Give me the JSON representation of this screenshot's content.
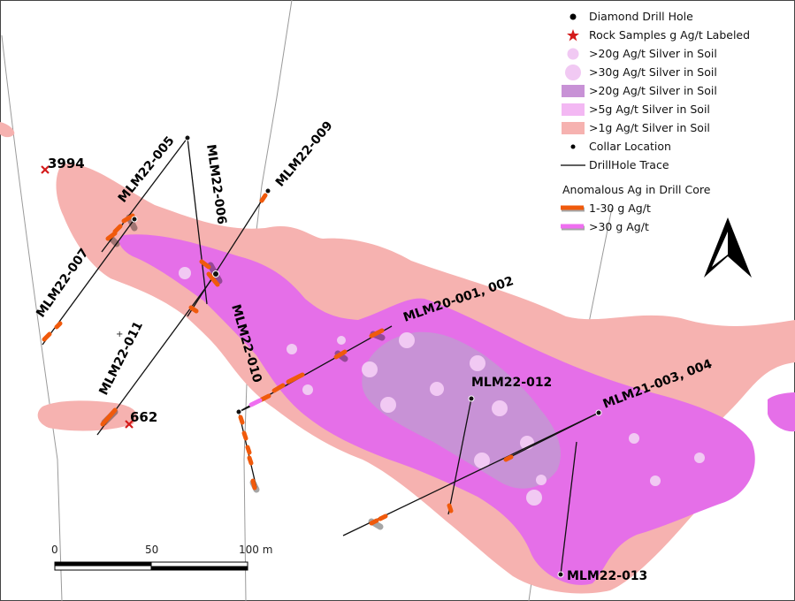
{
  "legend": {
    "items": [
      {
        "label": "Diamond Drill Hole",
        "icon": "black-dot-icon"
      },
      {
        "label": "Rock Samples g Ag/t Labeled",
        "icon": "red-star-icon"
      },
      {
        "label": ">20g Ag/t Silver in Soil",
        "icon": "small-lilac-circle-icon"
      },
      {
        "label": ">30g Ag/t Silver in Soil",
        "icon": "large-lilac-circle-icon"
      },
      {
        "label": ">20g Ag/t Silver in Soil",
        "icon": "purple-area-icon"
      },
      {
        "label": ">5g Ag/t Silver in Soil",
        "icon": "magenta-area-icon"
      },
      {
        "label": ">1g Ag/t Silver in Soil",
        "icon": "pink-area-icon"
      },
      {
        "label": "Collar Location",
        "icon": "collar-dot-icon"
      },
      {
        "label": "DrillHole Trace",
        "icon": "black-line-icon"
      }
    ],
    "core_title": "Anomalous Ag in Drill Core",
    "core_items": [
      {
        "label": "1-30 g Ag/t",
        "icon": "orange-bar-icon"
      },
      {
        "label": ">30 g Ag/t",
        "icon": "magenta-bar-icon"
      }
    ]
  },
  "holes": {
    "h005": "MLM22-005",
    "h006": "MLM22-006",
    "h007": "MLM22-007",
    "h009": "MLM22-009",
    "h010": "MLM22-010",
    "h011": "MLM22-011",
    "h012": "MLM22-012",
    "h013": "MLM22-013",
    "h20": "MLM20-001, 002",
    "h21": "MLM21-003, 004"
  },
  "samples": {
    "s1": "3994",
    "s2": "662"
  },
  "scale": {
    "t0": "0",
    "t50": "50",
    "t100": "100 m"
  },
  "colors": {
    "pink_zone": "#f6b2b0",
    "magenta_zone": "#e56fe8",
    "purple_zone": "#c892d6",
    "soil_circle": "#f1c9f3",
    "core_orange": "#f05a0c",
    "sample_star": "#d41b1b"
  }
}
